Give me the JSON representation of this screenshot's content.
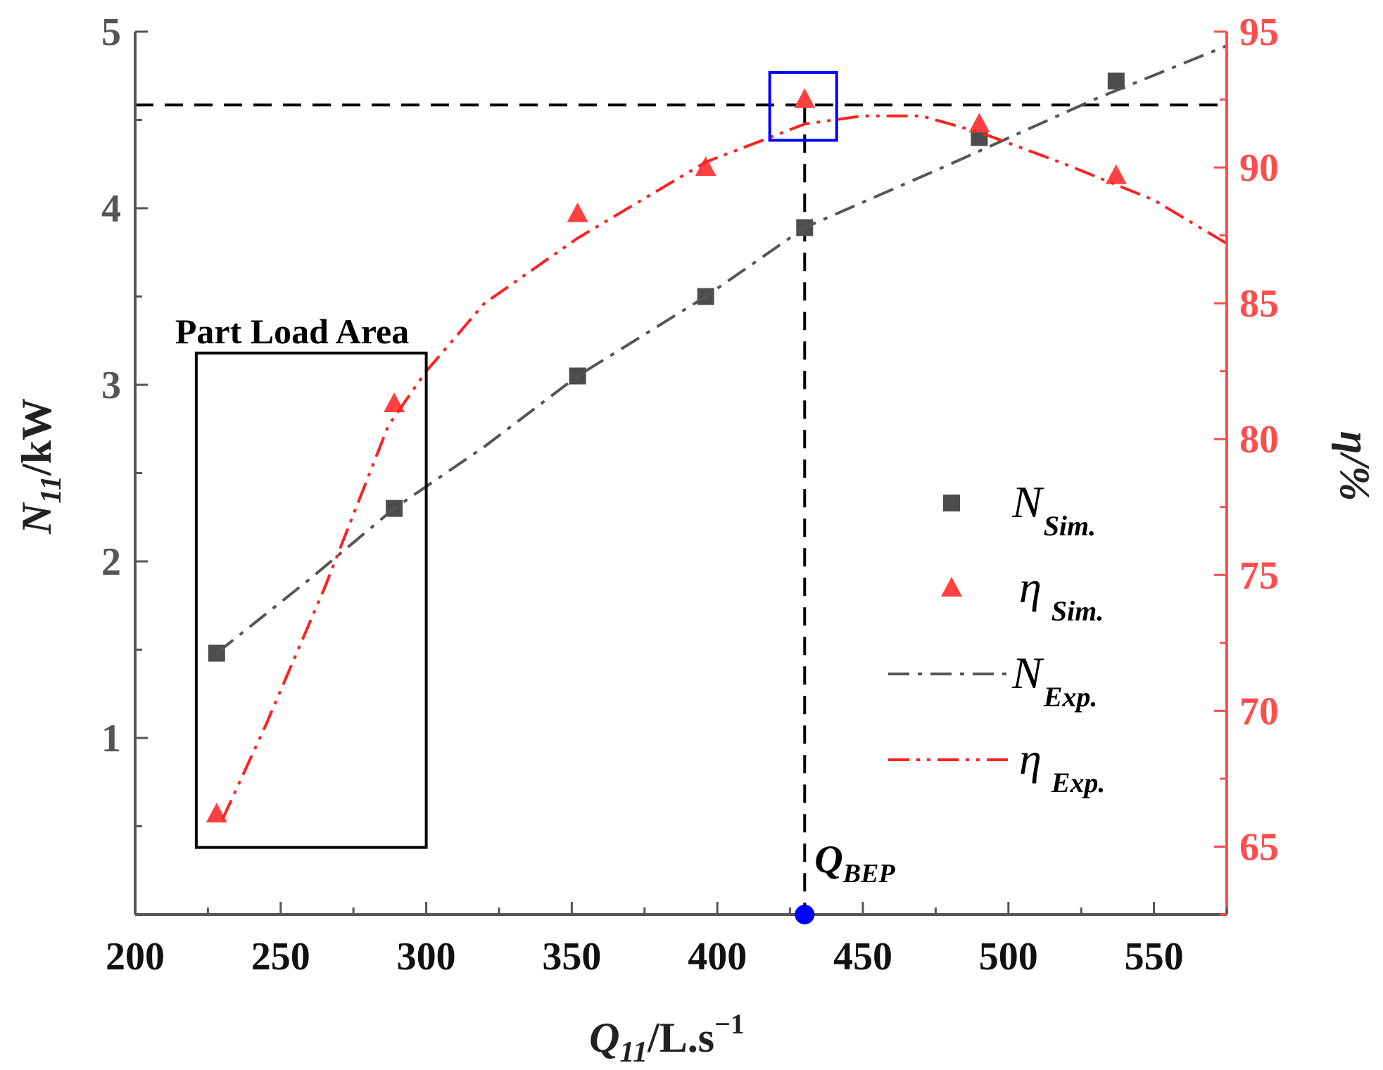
{
  "chart_data": {
    "type": "scatter",
    "x_axis": {
      "label_main": "Q",
      "label_sub": "11",
      "label_rest": "/L.s",
      "label_sup": "−1",
      "range": [
        200,
        575
      ],
      "ticks": [
        "200",
        "250",
        "300",
        "350",
        "400",
        "450",
        "500",
        "550"
      ]
    },
    "y_axis_left": {
      "label_main": "N",
      "label_sub": "11",
      "label_rest": "/kW",
      "range": [
        0,
        5
      ],
      "ticks": [
        "1",
        "2",
        "3",
        "4",
        "5"
      ],
      "color": "#555555"
    },
    "y_axis_right": {
      "label": "η/%",
      "range": [
        62.5,
        95
      ],
      "ticks": [
        "65",
        "70",
        "75",
        "80",
        "85",
        "90",
        "95"
      ],
      "color": "#ff4d4d"
    },
    "series": [
      {
        "name": "N_Sim.",
        "legend_main": "N",
        "legend_sub": "Sim.",
        "kind": "scatter",
        "marker": "square",
        "axis": "left",
        "color": "#4d4d4d",
        "x": [
          228,
          289,
          352,
          396,
          430,
          490,
          537
        ],
        "y": [
          1.48,
          2.3,
          3.05,
          3.5,
          3.89,
          4.4,
          4.72
        ]
      },
      {
        "name": "η_Sim.",
        "legend_main": "η",
        "legend_sub": "Sim.",
        "kind": "scatter",
        "marker": "triangle",
        "axis": "right",
        "color": "#ff4040",
        "x": [
          228,
          289,
          352,
          396,
          430,
          490,
          537
        ],
        "y": [
          66.2,
          81.3,
          88.3,
          90.0,
          92.5,
          91.6,
          89.7
        ]
      },
      {
        "name": "N_Exp.",
        "legend_main": "N",
        "legend_sub": "Exp.",
        "kind": "line",
        "dash": "dash-dot",
        "axis": "left",
        "color": "#555555",
        "x": [
          228,
          260,
          289,
          320,
          352,
          396,
          430,
          480,
          530,
          575
        ],
        "y": [
          1.48,
          1.9,
          2.3,
          2.65,
          3.05,
          3.5,
          3.89,
          4.25,
          4.62,
          4.92
        ]
      },
      {
        "name": "η_Exp.",
        "legend_main": "η",
        "legend_sub": "Exp.",
        "kind": "line",
        "dash": "dash-dot-dot",
        "axis": "right",
        "color": "#ff2020",
        "x": [
          230,
          245,
          265,
          287,
          300,
          320,
          352,
          396,
          430,
          450,
          470,
          490,
          520,
          550,
          575
        ],
        "y": [
          66.0,
          69.5,
          74.5,
          80.5,
          82.5,
          85.0,
          87.4,
          90.2,
          91.6,
          91.9,
          91.9,
          91.3,
          90.1,
          88.8,
          87.2
        ]
      }
    ],
    "reference_lines": {
      "horizontal_y_right": 92.3,
      "vertical_x": 430
    },
    "annotations": {
      "part_load_label": "Part Load Area",
      "part_load_x_range": [
        221,
        300
      ],
      "part_load_y_range": [
        0.38,
        3.18
      ],
      "bep_label_main": "Q",
      "bep_label_sub": "BEP",
      "bep_x": 430,
      "bep_highlight_x": [
        418,
        441
      ],
      "bep_highlight_y_right": [
        91.0,
        93.5
      ],
      "bep_marker_color": "#0000ff"
    }
  }
}
